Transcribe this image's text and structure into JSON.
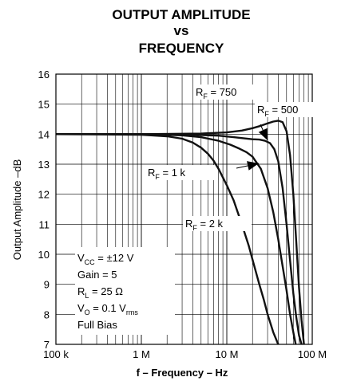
{
  "chart_data": {
    "type": "line",
    "title_lines": [
      "OUTPUT AMPLITUDE",
      "vs",
      "FREQUENCY"
    ],
    "xlabel": "f – Frequency – Hz",
    "ylabel": "Output Amplitude –dB",
    "x_scale": "log",
    "xlim": [
      100000,
      100000000
    ],
    "ylim": [
      7,
      16
    ],
    "grid": true,
    "x_tick_values": [
      100000,
      1000000,
      10000000,
      100000000
    ],
    "x_tick_labels": [
      "100 k",
      "1 M",
      "10 M",
      "100 M"
    ],
    "y_tick_values": [
      7,
      8,
      9,
      10,
      11,
      12,
      13,
      14,
      15,
      16
    ],
    "y_tick_labels": [
      "7",
      "8",
      "9",
      "10",
      "11",
      "12",
      "13",
      "14",
      "15",
      "16"
    ],
    "series": [
      {
        "label": {
          "main": "R",
          "sub": "F",
          "rest": " = 750"
        },
        "x": [
          100000,
          1000000,
          5000000,
          10000000,
          15000000,
          20000000,
          25000000,
          30000000,
          35000000,
          40000000,
          45000000,
          50000000,
          55000000,
          60000000,
          65000000,
          70000000,
          75000000,
          80000000
        ],
        "y": [
          14.0,
          14.0,
          14.02,
          14.06,
          14.12,
          14.2,
          14.28,
          14.36,
          14.42,
          14.45,
          14.4,
          14.1,
          13.3,
          12.0,
          10.4,
          8.9,
          7.8,
          7.0
        ]
      },
      {
        "label": {
          "main": "R",
          "sub": "F",
          "rest": " = 500"
        },
        "x": [
          100000,
          1000000,
          4000000,
          8000000,
          12000000,
          16000000,
          20000000,
          24000000,
          28000000,
          32000000,
          36000000,
          40000000,
          45000000,
          50000000,
          55000000,
          60000000,
          65000000,
          70000000,
          75000000
        ],
        "y": [
          14.0,
          14.0,
          13.98,
          13.95,
          13.9,
          13.86,
          13.83,
          13.82,
          13.78,
          13.7,
          13.5,
          13.1,
          12.2,
          11.0,
          9.8,
          8.7,
          7.9,
          7.3,
          7.0
        ]
      },
      {
        "label": {
          "main": "R",
          "sub": "F",
          "rest": " = 1 k"
        },
        "x": [
          100000,
          1000000,
          3000000,
          5000000,
          8000000,
          11000000,
          14000000,
          17000000,
          20000000,
          25000000,
          30000000,
          35000000,
          40000000,
          45000000,
          50000000,
          55000000,
          60000000,
          64000000
        ],
        "y": [
          14.0,
          14.0,
          13.96,
          13.9,
          13.78,
          13.65,
          13.52,
          13.4,
          13.25,
          12.85,
          12.2,
          11.4,
          10.5,
          9.6,
          8.8,
          8.0,
          7.4,
          7.0
        ]
      },
      {
        "label": {
          "main": "R",
          "sub": "F",
          "rest": " = 2 k"
        },
        "x": [
          100000,
          1000000,
          2000000,
          3000000,
          4000000,
          5000000,
          6000000,
          7000000,
          8000000,
          10000000,
          12000000,
          15000000,
          18000000,
          21000000,
          24000000,
          27000000,
          30000000,
          35000000,
          40000000
        ],
        "y": [
          14.0,
          13.98,
          13.93,
          13.85,
          13.72,
          13.55,
          13.35,
          13.12,
          12.85,
          12.3,
          11.8,
          11.0,
          10.3,
          9.6,
          9.0,
          8.5,
          8.0,
          7.4,
          7.0
        ]
      }
    ],
    "conditions": [
      {
        "main": "V",
        "sub": "CC",
        "rest": " = ±12 V"
      },
      {
        "main": "Gain = 5",
        "sub": "",
        "rest": ""
      },
      {
        "main": "R",
        "sub": "L",
        "rest": " =  25 Ω"
      },
      {
        "main": "V",
        "sub": "O",
        "rest": " = 0.1 V",
        "sub2": "rms"
      },
      {
        "main": "Full Bias",
        "sub": "",
        "rest": ""
      }
    ]
  }
}
